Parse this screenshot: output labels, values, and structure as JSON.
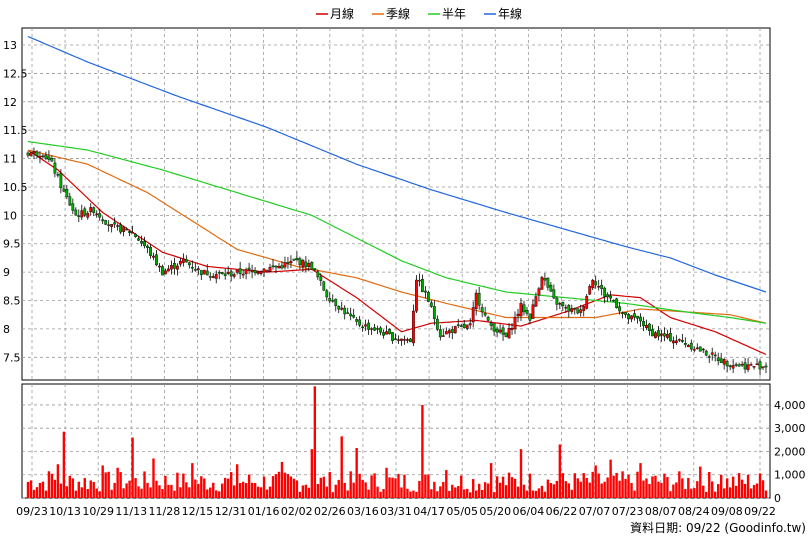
{
  "chart_data": [
    {
      "type": "candlestick",
      "legend": [
        {
          "name": "月線",
          "color": "#d00000"
        },
        {
          "name": "季線",
          "color": "#e06a10"
        },
        {
          "name": "半年",
          "color": "#22cc22"
        },
        {
          "name": "年線",
          "color": "#2266dd"
        }
      ],
      "y_ticks": [
        "7.5",
        "8",
        "8.5",
        "9",
        "9.5",
        "10",
        "10.5",
        "11",
        "11.5",
        "12",
        "12.5",
        "13"
      ],
      "ylim": [
        7.1,
        13.3
      ],
      "x_ticks": [
        "09/23",
        "10/13",
        "10/29",
        "11/13",
        "11/28",
        "12/15",
        "12/31",
        "01/16",
        "02/02",
        "02/26",
        "03/16",
        "03/31",
        "04/17",
        "05/05",
        "05/20",
        "06/04",
        "06/22",
        "07/07",
        "07/23",
        "08/07",
        "08/24",
        "09/08",
        "09/22"
      ],
      "n_days": 248,
      "colors": {
        "up": "#ff0000",
        "down": "#00aa00"
      },
      "close_anchors": [
        [
          0,
          11.1
        ],
        [
          5,
          11.1
        ],
        [
          8,
          10.9
        ],
        [
          12,
          10.4
        ],
        [
          16,
          10.0
        ],
        [
          22,
          10.1
        ],
        [
          28,
          9.8
        ],
        [
          35,
          9.7
        ],
        [
          40,
          9.4
        ],
        [
          45,
          9.0
        ],
        [
          52,
          9.2
        ],
        [
          58,
          9.0
        ],
        [
          65,
          8.95
        ],
        [
          72,
          9.0
        ],
        [
          78,
          9.05
        ],
        [
          84,
          9.1
        ],
        [
          90,
          9.2
        ],
        [
          95,
          9.1
        ],
        [
          100,
          8.6
        ],
        [
          104,
          8.4
        ],
        [
          110,
          8.1
        ],
        [
          116,
          8.0
        ],
        [
          122,
          7.85
        ],
        [
          128,
          7.8
        ],
        [
          130,
          8.9
        ],
        [
          134,
          8.5
        ],
        [
          138,
          7.9
        ],
        [
          143,
          8.0
        ],
        [
          148,
          8.05
        ],
        [
          150,
          8.6
        ],
        [
          154,
          8.1
        ],
        [
          160,
          7.85
        ],
        [
          165,
          8.4
        ],
        [
          168,
          8.2
        ],
        [
          172,
          8.95
        ],
        [
          176,
          8.5
        ],
        [
          180,
          8.35
        ],
        [
          185,
          8.3
        ],
        [
          189,
          8.9
        ],
        [
          193,
          8.6
        ],
        [
          196,
          8.5
        ],
        [
          200,
          8.2
        ],
        [
          205,
          8.15
        ],
        [
          208,
          7.95
        ],
        [
          214,
          7.85
        ],
        [
          220,
          7.75
        ],
        [
          228,
          7.55
        ],
        [
          234,
          7.4
        ],
        [
          240,
          7.35
        ],
        [
          247,
          7.35
        ]
      ],
      "ma_lines": [
        {
          "name": "月線",
          "points": [
            [
              0,
              11.15
            ],
            [
              10,
              10.8
            ],
            [
              25,
              10.05
            ],
            [
              45,
              9.35
            ],
            [
              60,
              9.1
            ],
            [
              80,
              9.0
            ],
            [
              95,
              9.05
            ],
            [
              110,
              8.55
            ],
            [
              125,
              7.95
            ],
            [
              135,
              8.1
            ],
            [
              150,
              8.15
            ],
            [
              165,
              8.05
            ],
            [
              180,
              8.3
            ],
            [
              195,
              8.6
            ],
            [
              205,
              8.55
            ],
            [
              215,
              8.2
            ],
            [
              230,
              7.95
            ],
            [
              247,
              7.55
            ]
          ]
        },
        {
          "name": "季線",
          "points": [
            [
              0,
              11.15
            ],
            [
              20,
              10.9
            ],
            [
              40,
              10.4
            ],
            [
              55,
              9.9
            ],
            [
              70,
              9.4
            ],
            [
              90,
              9.1
            ],
            [
              110,
              8.9
            ],
            [
              125,
              8.65
            ],
            [
              140,
              8.45
            ],
            [
              160,
              8.2
            ],
            [
              175,
              8.2
            ],
            [
              190,
              8.2
            ],
            [
              205,
              8.35
            ],
            [
              220,
              8.3
            ],
            [
              235,
              8.25
            ],
            [
              247,
              8.1
            ]
          ]
        },
        {
          "name": "半年",
          "points": [
            [
              0,
              11.3
            ],
            [
              20,
              11.15
            ],
            [
              45,
              10.8
            ],
            [
              70,
              10.4
            ],
            [
              95,
              10.0
            ],
            [
              110,
              9.6
            ],
            [
              125,
              9.2
            ],
            [
              140,
              8.9
            ],
            [
              160,
              8.65
            ],
            [
              180,
              8.55
            ],
            [
              200,
              8.45
            ],
            [
              220,
              8.3
            ],
            [
              235,
              8.2
            ],
            [
              247,
              8.1
            ]
          ]
        },
        {
          "name": "年線",
          "points": [
            [
              0,
              13.15
            ],
            [
              20,
              12.7
            ],
            [
              50,
              12.1
            ],
            [
              80,
              11.55
            ],
            [
              110,
              10.9
            ],
            [
              135,
              10.45
            ],
            [
              160,
              10.05
            ],
            [
              180,
              9.75
            ],
            [
              200,
              9.45
            ],
            [
              215,
              9.25
            ],
            [
              230,
              8.95
            ],
            [
              247,
              8.65
            ]
          ]
        }
      ]
    },
    {
      "type": "bar",
      "y_ticks": [
        "0",
        "1,000",
        "2,000",
        "3,000",
        "4,000"
      ],
      "ylim": [
        0,
        4900
      ],
      "n_days": 248,
      "base_volume": 700,
      "spikes": [
        [
          7,
          1150
        ],
        [
          10,
          1450
        ],
        [
          12,
          2850
        ],
        [
          25,
          1400
        ],
        [
          30,
          1300
        ],
        [
          35,
          2600
        ],
        [
          42,
          1700
        ],
        [
          55,
          1500
        ],
        [
          70,
          1450
        ],
        [
          85,
          1550
        ],
        [
          95,
          2100
        ],
        [
          96,
          4800
        ],
        [
          105,
          2650
        ],
        [
          110,
          2150
        ],
        [
          120,
          1300
        ],
        [
          132,
          4000
        ],
        [
          140,
          1200
        ],
        [
          155,
          1500
        ],
        [
          165,
          2100
        ],
        [
          178,
          2300
        ],
        [
          190,
          1400
        ],
        [
          195,
          1650
        ],
        [
          205,
          1500
        ],
        [
          225,
          1350
        ],
        [
          232,
          1000
        ]
      ]
    }
  ],
  "footer": {
    "label": "資料日期: 09/22 (Goodinfo.tw)"
  }
}
